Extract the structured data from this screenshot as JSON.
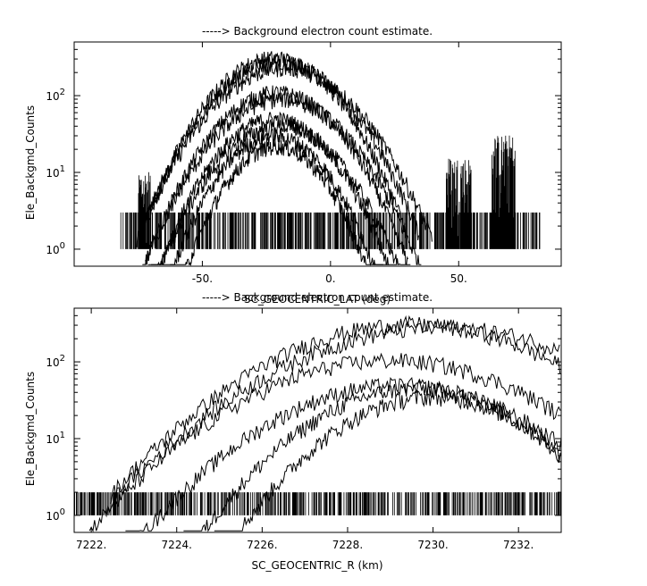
{
  "chart_data": [
    {
      "type": "line",
      "title": "-----> Background electron count estimate.",
      "xlabel": "SC_GEOCENTRIC_LAT (deg)",
      "ylabel": "Ele_Backgmd_Counts",
      "xlim": [
        -100,
        90
      ],
      "ylim": [
        0.6,
        500
      ],
      "yscale": "log",
      "x_ticks": [
        {
          "value": -50,
          "label": "-50."
        },
        {
          "value": 0,
          "label": "0."
        },
        {
          "value": 50,
          "label": "50."
        }
      ],
      "y_ticks": [
        {
          "value": 1,
          "base": "10",
          "exp": "0"
        },
        {
          "value": 10,
          "base": "10",
          "exp": "1"
        },
        {
          "value": 100,
          "base": "10",
          "exp": "2"
        }
      ],
      "x_range": [
        -82,
        82
      ],
      "noise_floor": {
        "min": 1,
        "max": 3
      },
      "active_bands": [
        {
          "from": -75,
          "to": -70,
          "peak": 10
        },
        {
          "from": 45,
          "to": 55,
          "peak": 15
        },
        {
          "from": 63,
          "to": 72,
          "peak": 30
        }
      ],
      "series": [
        {
          "peak": 310,
          "center": -22,
          "width": 16
        },
        {
          "peak": 270,
          "center": -20,
          "width": 17
        },
        {
          "peak": 230,
          "center": -18,
          "width": 18
        },
        {
          "peak": 110,
          "center": -21,
          "width": 16
        },
        {
          "peak": 90,
          "center": -19,
          "width": 17
        },
        {
          "peak": 50,
          "center": -22,
          "width": 15
        },
        {
          "peak": 40,
          "center": -20,
          "width": 16
        },
        {
          "peak": 30,
          "center": -22,
          "width": 14
        },
        {
          "peak": 22,
          "center": -21,
          "width": 13
        }
      ]
    },
    {
      "type": "line",
      "title": "-----> Background electron count estimate.",
      "xlabel": "SC_GEOCENTRIC_R (km)",
      "ylabel": "Ele_Backgmd_Counts",
      "xlim": [
        7221.6,
        7233.0
      ],
      "ylim": [
        0.6,
        500
      ],
      "yscale": "log",
      "x_ticks": [
        {
          "value": 7222,
          "label": "7222."
        },
        {
          "value": 7224,
          "label": "7224."
        },
        {
          "value": 7226,
          "label": "7226."
        },
        {
          "value": 7228,
          "label": "7228."
        },
        {
          "value": 7230,
          "label": "7230."
        },
        {
          "value": 7232,
          "label": "7232."
        }
      ],
      "y_ticks": [
        {
          "value": 1,
          "base": "10",
          "exp": "0"
        },
        {
          "value": 10,
          "base": "10",
          "exp": "1"
        },
        {
          "value": 100,
          "base": "10",
          "exp": "2"
        }
      ],
      "x_range": [
        7221.6,
        7233.0
      ],
      "noise_floor": {
        "min": 1,
        "max": 2
      },
      "active_bands": [],
      "series": [
        {
          "peak": 310,
          "center": 7229.5,
          "width": 2.2
        },
        {
          "peak": 280,
          "center": 7230.2,
          "width": 2.4
        },
        {
          "peak": 105,
          "center": 7229.0,
          "width": 2.2
        },
        {
          "peak": 50,
          "center": 7229.2,
          "width": 2.0
        },
        {
          "peak": 45,
          "center": 7229.6,
          "width": 1.7
        },
        {
          "peak": 35,
          "center": 7230.0,
          "width": 1.6
        }
      ]
    }
  ]
}
